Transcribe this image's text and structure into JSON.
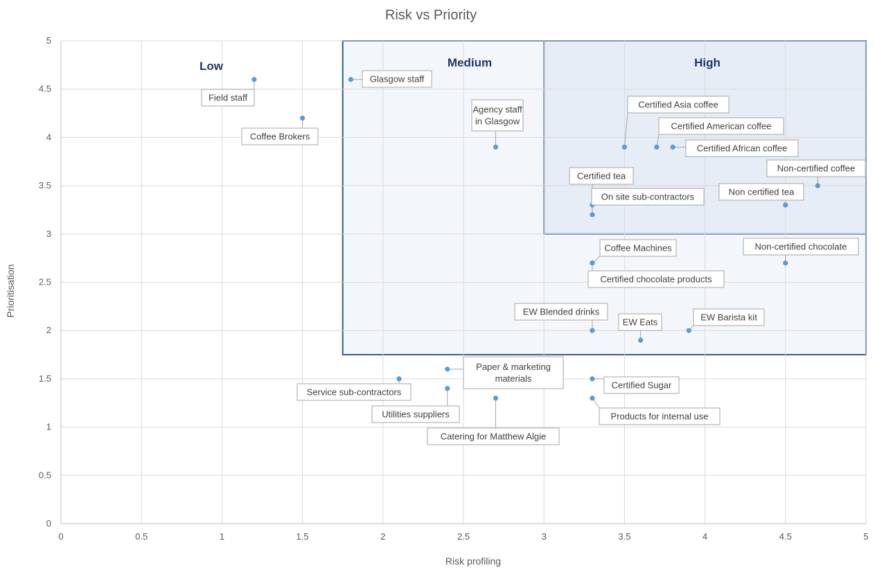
{
  "chart_data": {
    "type": "scatter",
    "title": "Risk vs Priority",
    "xlabel": "Risk profiling",
    "ylabel": "Prioritisation",
    "xlim": [
      0,
      5
    ],
    "ylim": [
      0,
      5
    ],
    "x_ticks": [
      "0",
      "0.5",
      "1",
      "1.5",
      "2",
      "2.5",
      "3",
      "3.5",
      "4",
      "4.5",
      "5"
    ],
    "y_ticks": [
      "0",
      "0.5",
      "1",
      "1.5",
      "2",
      "2.5",
      "3",
      "3.5",
      "4",
      "4.5",
      "5"
    ],
    "grid": true,
    "point_color": "#5b9bd5",
    "zones": [
      {
        "label": "Low",
        "x": [
          0,
          1.75
        ],
        "y": [
          1.75,
          5
        ],
        "fill": "#ffffff",
        "border": "none"
      },
      {
        "label": "Medium",
        "x": [
          1.75,
          5
        ],
        "y": [
          1.75,
          5
        ],
        "fill": "#f3f6fb",
        "border": "#2e5e8c"
      },
      {
        "label": "High",
        "x": [
          3,
          5
        ],
        "y": [
          3,
          5
        ],
        "fill": "#e6edf7",
        "border": "#2e5e8c"
      }
    ],
    "points": [
      {
        "label": "Field staff",
        "x": 1.2,
        "y": 4.6
      },
      {
        "label": "Coffee Brokers",
        "x": 1.5,
        "y": 4.2
      },
      {
        "label": "Glasgow staff",
        "x": 1.8,
        "y": 4.6
      },
      {
        "label": "Agency staff in Glasgow",
        "x": 2.7,
        "y": 3.9
      },
      {
        "label": "Certified Asia coffee",
        "x": 3.5,
        "y": 3.9
      },
      {
        "label": "Certified American coffee",
        "x": 3.7,
        "y": 3.9
      },
      {
        "label": "Certified African coffee",
        "x": 3.8,
        "y": 3.9
      },
      {
        "label": "Non-certified coffee",
        "x": 4.7,
        "y": 3.5
      },
      {
        "label": "Certified tea",
        "x": 3.3,
        "y": 3.3
      },
      {
        "label": "On site sub-contractors",
        "x": 3.3,
        "y": 3.2
      },
      {
        "label": "Non certified tea",
        "x": 4.5,
        "y": 3.3
      },
      {
        "label": "Coffee Machines",
        "x": 3.3,
        "y": 2.7
      },
      {
        "label": "Certified chocolate products",
        "x": 3.3,
        "y": 2.7
      },
      {
        "label": "Non-certified chocolate",
        "x": 4.5,
        "y": 2.7
      },
      {
        "label": "EW Blended drinks",
        "x": 3.3,
        "y": 2.0
      },
      {
        "label": "EW Eats",
        "x": 3.6,
        "y": 1.9
      },
      {
        "label": "EW Barista kit",
        "x": 3.9,
        "y": 2.0
      },
      {
        "label": "Paper & marketing materials",
        "x": 2.4,
        "y": 1.6
      },
      {
        "label": "Service sub-contractors",
        "x": 2.1,
        "y": 1.5
      },
      {
        "label": "Utilities suppliers",
        "x": 2.4,
        "y": 1.4
      },
      {
        "label": "Catering for Matthew Algie",
        "x": 2.7,
        "y": 1.3
      },
      {
        "label": "Certified Sugar",
        "x": 3.3,
        "y": 1.5
      },
      {
        "label": "Products for internal use",
        "x": 3.3,
        "y": 1.3
      }
    ]
  }
}
